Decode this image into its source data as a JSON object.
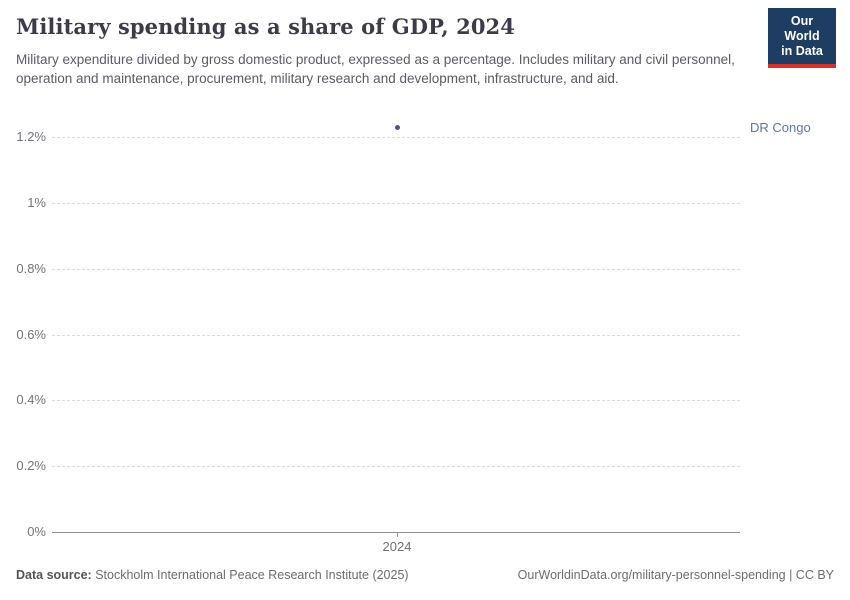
{
  "header": {
    "title": "Military spending as a share of GDP, 2024",
    "subtitle": "Military expenditure divided by gross domestic product, expressed as a percentage. Includes military and civil personnel, operation and maintenance, procurement, military research and development, infrastructure, and aid.",
    "logo": {
      "line1": "Our World",
      "line2": "in Data",
      "bg_color": "#1d3d63",
      "stripe_color": "#d0342c"
    }
  },
  "chart_data": {
    "type": "scatter",
    "title": "Military spending as a share of GDP, 2024",
    "x": [
      2024
    ],
    "xticks": [
      "2024"
    ],
    "series": [
      {
        "name": "DR Congo",
        "values": [
          1.23
        ],
        "color": "#4A549B",
        "label_color": "#5B76A8"
      }
    ],
    "xlabel": "",
    "ylabel": "",
    "ylim": [
      0,
      1.23
    ],
    "yticks": [
      "0%",
      "0.2%",
      "0.4%",
      "0.6%",
      "0.8%",
      "1%",
      "1.2%"
    ],
    "grid": "horizontal-dashed",
    "legend_position": "right-of-point"
  },
  "footer": {
    "datasource_label": "Data source:",
    "datasource": " Stockholm International Peace Research Institute (2025)",
    "url": "OurWorldinData.org/military-personnel-spending | CC BY"
  }
}
